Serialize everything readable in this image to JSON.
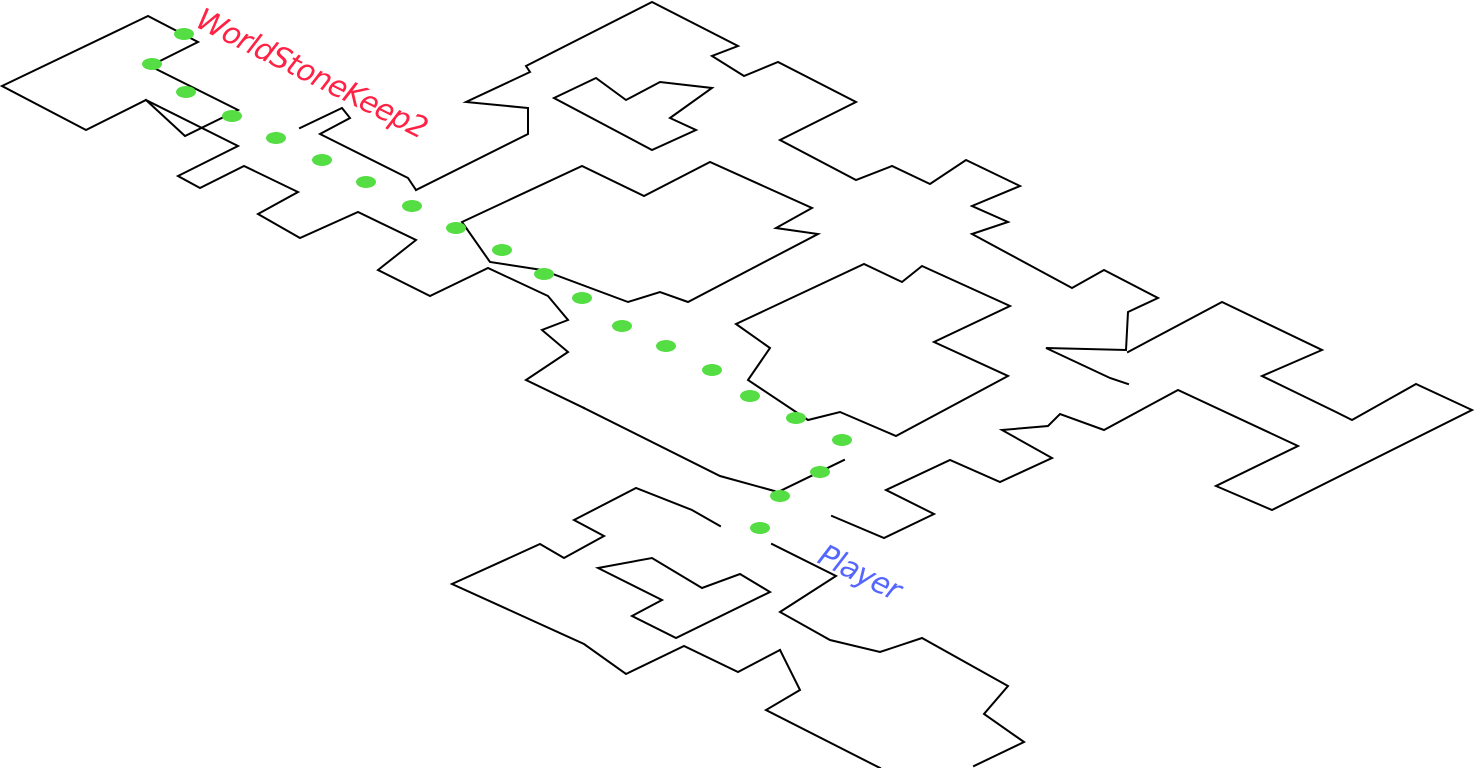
{
  "automap": {
    "area_label": "WorldStoneKeep2",
    "player_label": "Player",
    "colors": {
      "walls": "#000000",
      "path": "#55dd44",
      "area_label": "#ff2244",
      "player_label": "#5566ff",
      "background": "#ffffff"
    }
  }
}
